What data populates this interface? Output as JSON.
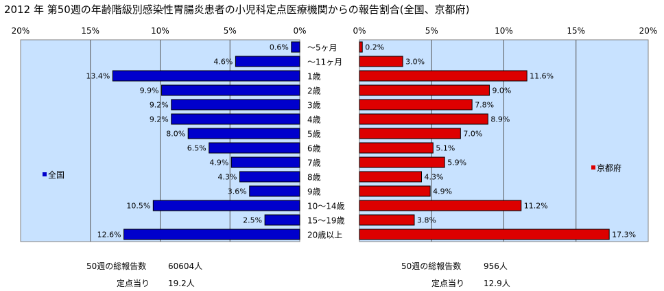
{
  "title": "2012 年 第50週の年齢階級別感染性胃腸炎患者の小児科定点医療機関からの報告割合(全国、京都府)",
  "stats": {
    "national": {
      "total_label": "50週の総報告数",
      "total_value": "60604人",
      "per_label": "定点当り",
      "per_value": "19.2人"
    },
    "kyoto": {
      "total_label": "50週の総報告数",
      "total_value": "956人",
      "per_label": "定点当り",
      "per_value": "12.9人"
    }
  },
  "chart_data": {
    "type": "bar",
    "orientation": "horizontal",
    "categories": [
      "～5ヶ月",
      "～11ヶ月",
      "1歳",
      "2歳",
      "3歳",
      "4歳",
      "5歳",
      "6歳",
      "7歳",
      "8歳",
      "9歳",
      "10～14歳",
      "15～19歳",
      "20歳以上"
    ],
    "ticks_left": [
      "20%",
      "15%",
      "10%",
      "5%",
      "0%"
    ],
    "ticks_right": [
      "0%",
      "5%",
      "10%",
      "15%",
      "20%"
    ],
    "xlim": [
      0,
      20
    ],
    "grid": true,
    "series": [
      {
        "name": "全国",
        "color": "#0000cc",
        "values": [
          0.6,
          4.6,
          13.4,
          9.9,
          9.2,
          9.2,
          8.0,
          6.5,
          4.9,
          4.3,
          3.6,
          10.5,
          2.5,
          12.6
        ],
        "labels": [
          "0.6%",
          "4.6%",
          "13.4%",
          "9.9%",
          "9.2%",
          "9.2%",
          "8.0%",
          "6.5%",
          "4.9%",
          "4.3%",
          "3.6%",
          "10.5%",
          "2.5%",
          "12.6%"
        ]
      },
      {
        "name": "京都府",
        "color": "#dd0000",
        "values": [
          0.2,
          3.0,
          11.6,
          9.0,
          7.8,
          8.9,
          7.0,
          5.1,
          5.9,
          4.3,
          4.9,
          11.2,
          3.8,
          17.3
        ],
        "labels": [
          "0.2%",
          "3.0%",
          "11.6%",
          "9.0%",
          "7.8%",
          "8.9%",
          "7.0%",
          "5.1%",
          "5.9%",
          "4.3%",
          "4.9%",
          "11.2%",
          "3.8%",
          "17.3%"
        ]
      }
    ],
    "plot_background": "#c8e2ff"
  }
}
